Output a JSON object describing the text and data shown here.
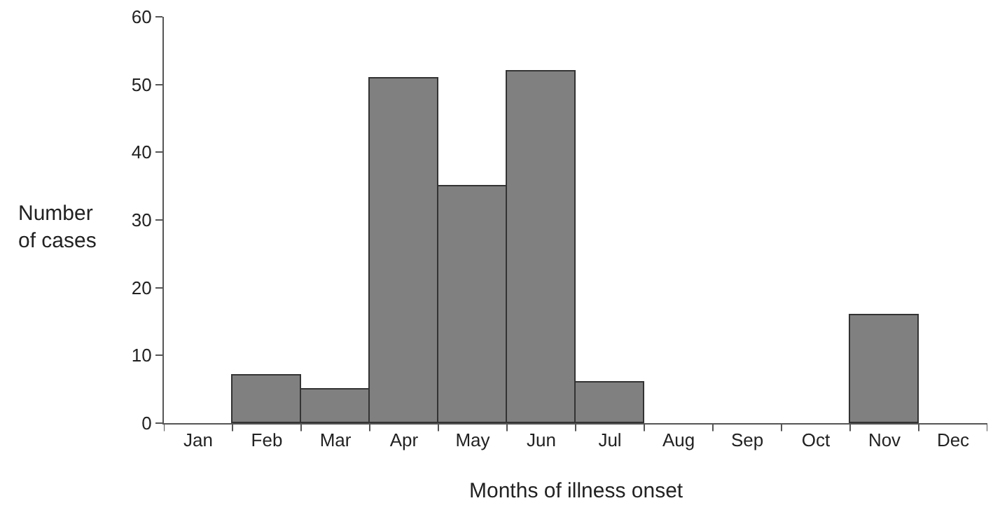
{
  "chart_data": {
    "type": "bar",
    "xlabel": "Months of illness onset",
    "ylabel": "Number\nof cases",
    "categories": [
      "Jan",
      "Feb",
      "Mar",
      "Apr",
      "May",
      "Jun",
      "Jul",
      "Aug",
      "Sep",
      "Oct",
      "Nov",
      "Dec"
    ],
    "values": [
      0,
      7,
      5,
      51,
      35,
      52,
      6,
      0,
      0,
      0,
      16,
      0
    ],
    "color": "#808080",
    "ylim": [
      0,
      60
    ],
    "yticks": [
      0,
      10,
      20,
      30,
      40,
      50,
      60
    ]
  }
}
